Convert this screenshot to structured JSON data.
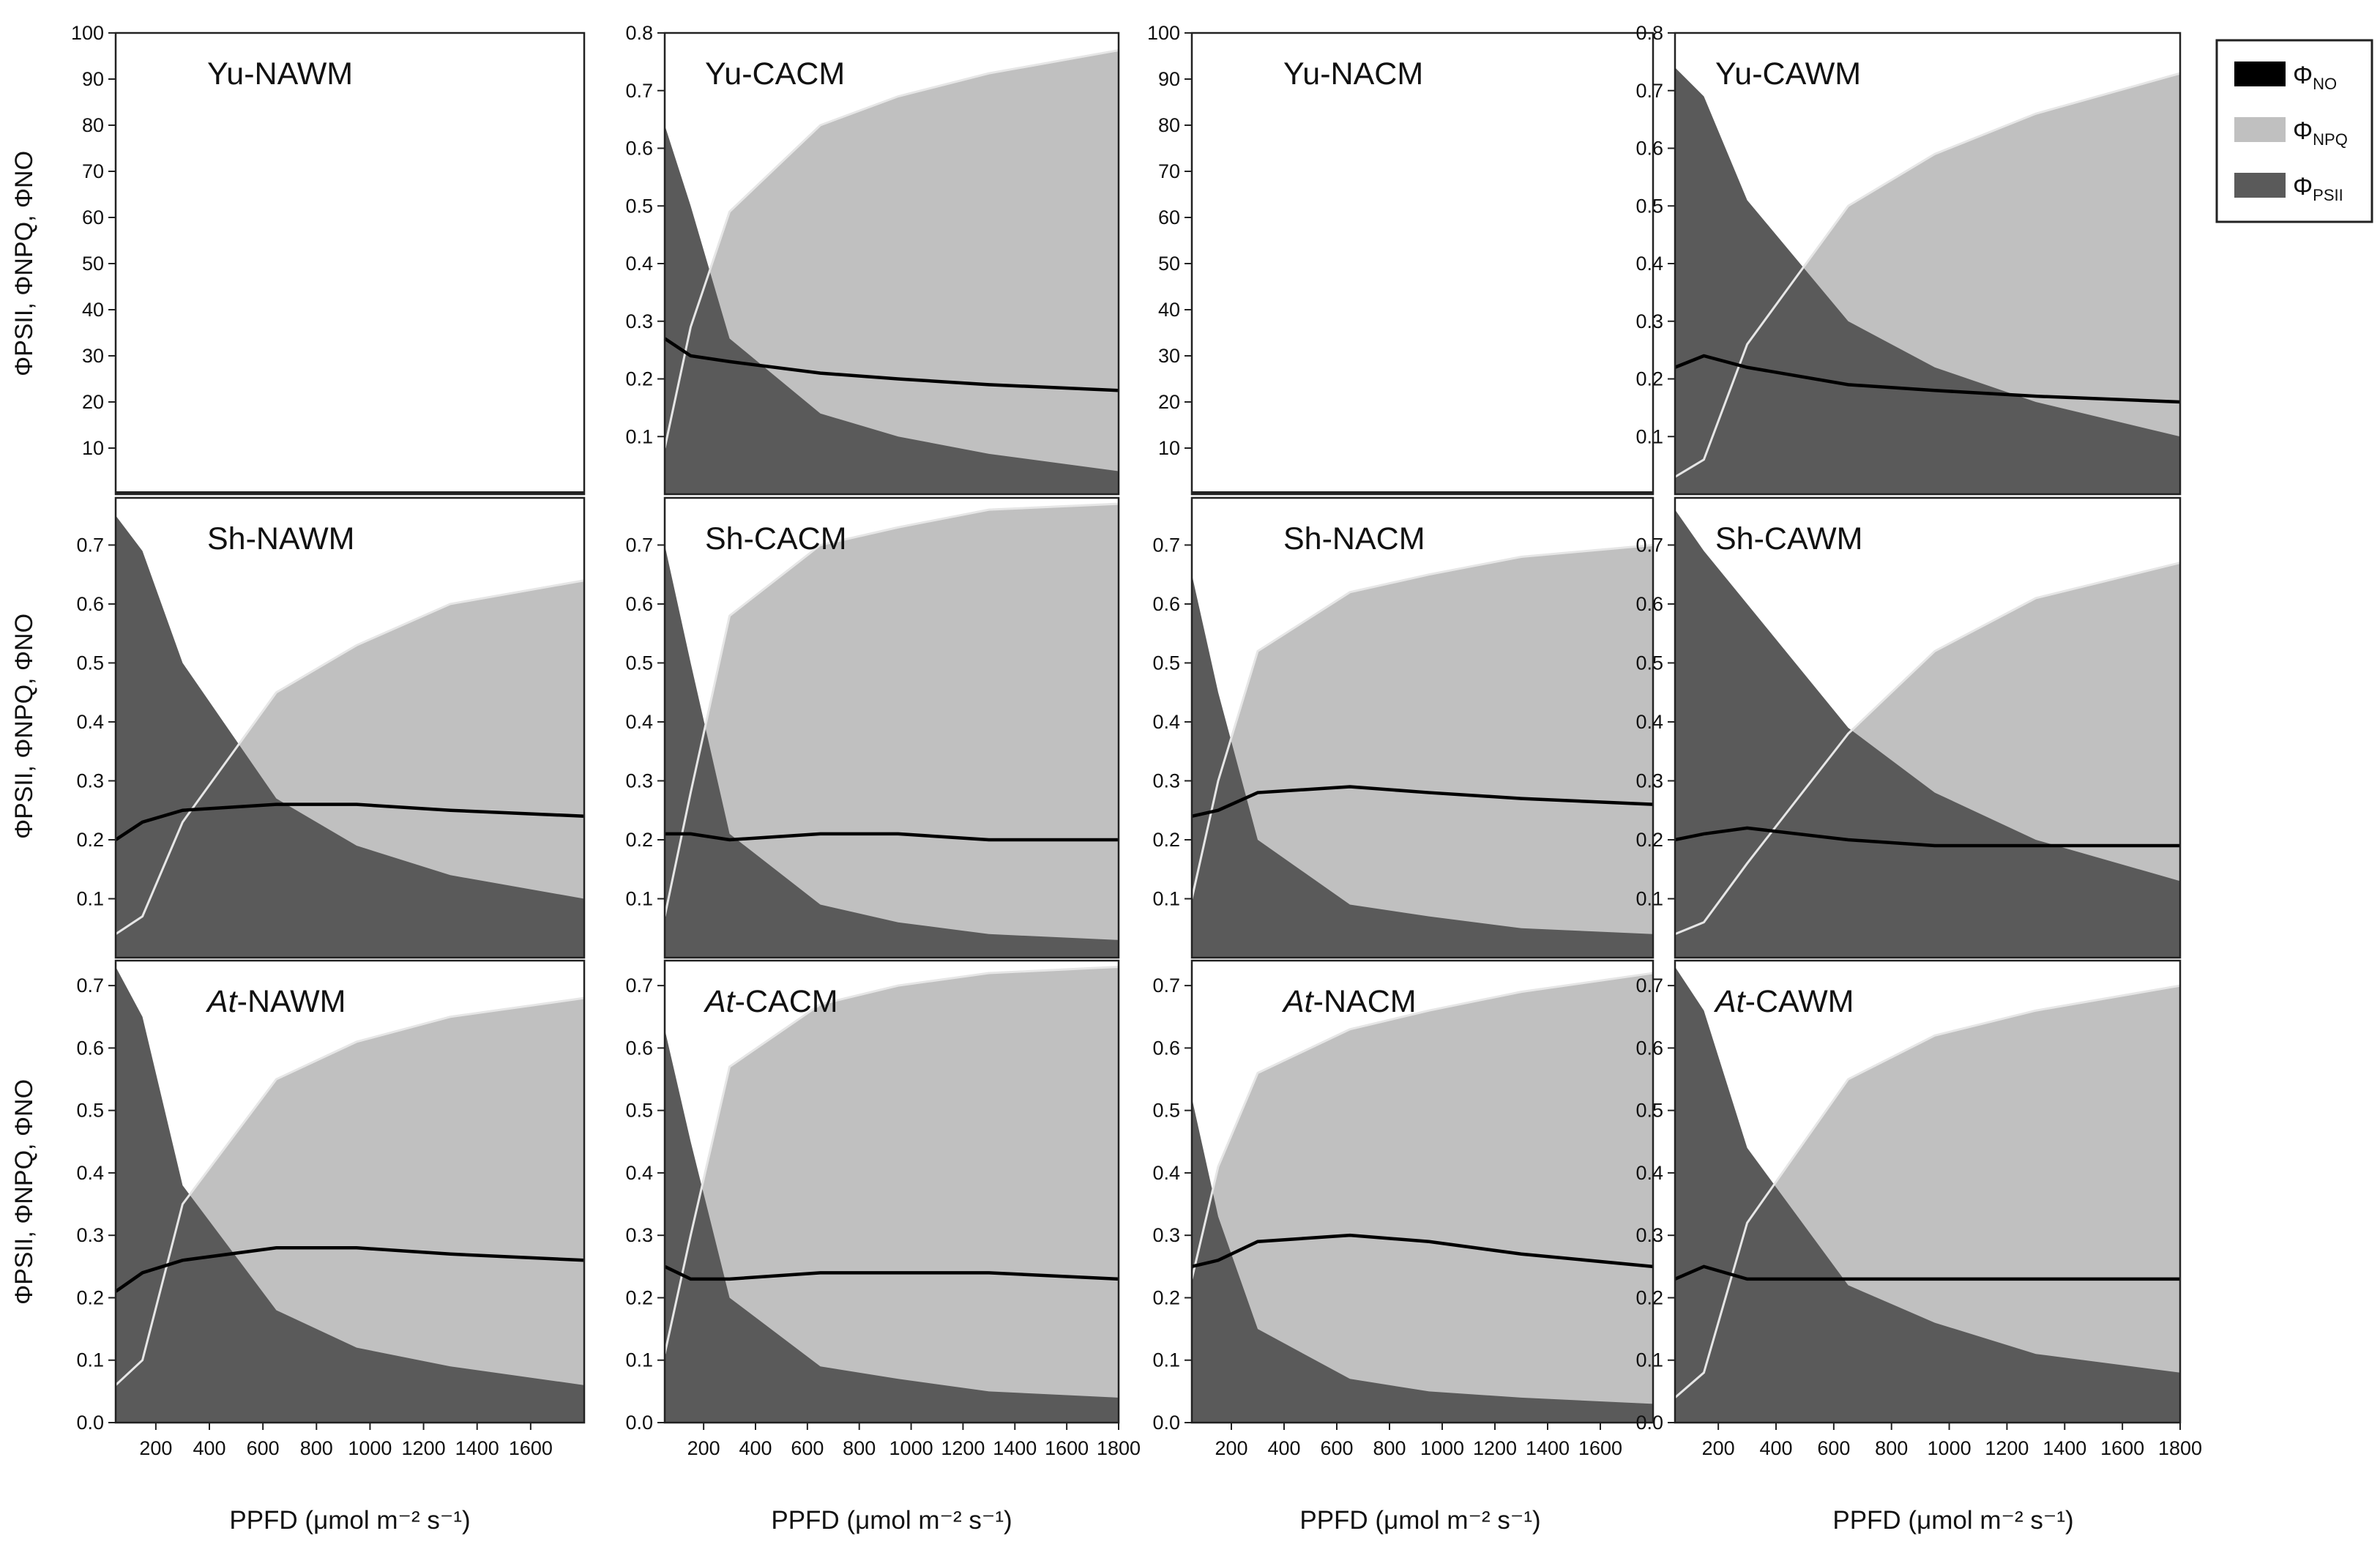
{
  "x_axis_label": "PPFD (μmol m⁻² s⁻¹)",
  "y_axis_label": "ΦPSII, ΦNPQ, ΦNO",
  "legend": [
    {
      "label": "ΦNO",
      "symbol": "Φ",
      "sub": "NO",
      "color": "#000000"
    },
    {
      "label": "ΦNPQ",
      "symbol": "Φ",
      "sub": "NPQ",
      "color": "#c0c0c0"
    },
    {
      "label": "ΦPSII",
      "symbol": "Φ",
      "sub": "PSII",
      "color": "#5a5a5a"
    }
  ],
  "colors": {
    "psii": "#5a5a5a",
    "npq": "#c0c0c0",
    "no": "#000000",
    "white_line": "#e6e6e6"
  },
  "chart_data": [
    {
      "type": "area",
      "title": "Yu-NAWM",
      "title_prefix": "Yu",
      "title_suffix": "-NAWM",
      "italic_prefix": false,
      "ylim": [
        0,
        100
      ],
      "yticks": [
        "10",
        "20",
        "30",
        "40",
        "50",
        "60",
        "70",
        "80",
        "90",
        "100"
      ],
      "xticks": [],
      "x": [],
      "series": []
    },
    {
      "type": "area",
      "title": "Yu-CACM",
      "title_prefix": "Yu",
      "title_suffix": "-CACM",
      "italic_prefix": false,
      "ylim": [
        0,
        0.8
      ],
      "yticks": [
        "0.1",
        "0.2",
        "0.3",
        "0.4",
        "0.5",
        "0.6",
        "0.7",
        "0.8"
      ],
      "xticks": [],
      "x": [
        50,
        150,
        300,
        650,
        950,
        1300,
        1800
      ],
      "series": [
        {
          "name": "PSII",
          "values": [
            0.64,
            0.5,
            0.27,
            0.14,
            0.1,
            0.07,
            0.04
          ]
        },
        {
          "name": "NPQ",
          "values": [
            0.08,
            0.29,
            0.49,
            0.64,
            0.69,
            0.73,
            0.77
          ]
        },
        {
          "name": "NO",
          "values": [
            0.27,
            0.24,
            0.23,
            0.21,
            0.2,
            0.19,
            0.18
          ]
        }
      ]
    },
    {
      "type": "area",
      "title": "Yu-NACM",
      "title_prefix": "Yu",
      "title_suffix": "-NACM",
      "italic_prefix": false,
      "ylim": [
        0,
        100
      ],
      "yticks": [
        "10",
        "20",
        "30",
        "40",
        "50",
        "60",
        "70",
        "80",
        "90",
        "100"
      ],
      "xticks": [],
      "x": [],
      "series": []
    },
    {
      "type": "area",
      "title": "Yu-CAWM",
      "title_prefix": "Yu",
      "title_suffix": "-CAWM",
      "italic_prefix": false,
      "ylim": [
        0,
        0.8
      ],
      "yticks": [
        "0.1",
        "0.2",
        "0.3",
        "0.4",
        "0.5",
        "0.6",
        "0.7",
        "0.8"
      ],
      "xticks": [],
      "x": [
        50,
        150,
        300,
        650,
        950,
        1300,
        1800
      ],
      "series": [
        {
          "name": "PSII",
          "values": [
            0.74,
            0.69,
            0.51,
            0.3,
            0.22,
            0.16,
            0.1
          ]
        },
        {
          "name": "NPQ",
          "values": [
            0.03,
            0.06,
            0.26,
            0.5,
            0.59,
            0.66,
            0.73
          ]
        },
        {
          "name": "NO",
          "values": [
            0.22,
            0.24,
            0.22,
            0.19,
            0.18,
            0.17,
            0.16
          ]
        }
      ]
    },
    {
      "type": "area",
      "title": "Sh-NAWM",
      "title_prefix": "Sh",
      "title_suffix": "-NAWM",
      "italic_prefix": false,
      "ylim": [
        0,
        0.78
      ],
      "yticks": [
        "0.1",
        "0.2",
        "0.3",
        "0.4",
        "0.5",
        "0.6",
        "0.7"
      ],
      "xticks": [],
      "x": [
        50,
        150,
        300,
        650,
        950,
        1300,
        1800
      ],
      "series": [
        {
          "name": "PSII",
          "values": [
            0.75,
            0.69,
            0.5,
            0.27,
            0.19,
            0.14,
            0.1
          ]
        },
        {
          "name": "NPQ",
          "values": [
            0.04,
            0.07,
            0.23,
            0.45,
            0.53,
            0.6,
            0.64
          ]
        },
        {
          "name": "NO",
          "values": [
            0.2,
            0.23,
            0.25,
            0.26,
            0.26,
            0.25,
            0.24
          ]
        }
      ]
    },
    {
      "type": "area",
      "title": "Sh-CACM",
      "title_prefix": "Sh",
      "title_suffix": "-CACM",
      "italic_prefix": false,
      "ylim": [
        0,
        0.78
      ],
      "yticks": [
        "0.1",
        "0.2",
        "0.3",
        "0.4",
        "0.5",
        "0.6",
        "0.7"
      ],
      "xticks": [],
      "x": [
        50,
        150,
        300,
        650,
        950,
        1300,
        1800
      ],
      "series": [
        {
          "name": "PSII",
          "values": [
            0.7,
            0.5,
            0.21,
            0.09,
            0.06,
            0.04,
            0.03
          ]
        },
        {
          "name": "NPQ",
          "values": [
            0.07,
            0.28,
            0.58,
            0.7,
            0.73,
            0.76,
            0.77
          ]
        },
        {
          "name": "NO",
          "values": [
            0.21,
            0.21,
            0.2,
            0.21,
            0.21,
            0.2,
            0.2
          ]
        }
      ]
    },
    {
      "type": "area",
      "title": "Sh-NACM",
      "title_prefix": "Sh",
      "title_suffix": "-NACM",
      "italic_prefix": false,
      "ylim": [
        0,
        0.78
      ],
      "yticks": [
        "0.1",
        "0.2",
        "0.3",
        "0.4",
        "0.5",
        "0.6",
        "0.7"
      ],
      "xticks": [],
      "x": [
        50,
        150,
        300,
        650,
        950,
        1300,
        1800
      ],
      "series": [
        {
          "name": "PSII",
          "values": [
            0.65,
            0.45,
            0.2,
            0.09,
            0.07,
            0.05,
            0.04
          ]
        },
        {
          "name": "NPQ",
          "values": [
            0.1,
            0.3,
            0.52,
            0.62,
            0.65,
            0.68,
            0.7
          ]
        },
        {
          "name": "NO",
          "values": [
            0.24,
            0.25,
            0.28,
            0.29,
            0.28,
            0.27,
            0.26
          ]
        }
      ]
    },
    {
      "type": "area",
      "title": "Sh-CAWM",
      "title_prefix": "Sh",
      "title_suffix": "-CAWM",
      "italic_prefix": false,
      "ylim": [
        0,
        0.78
      ],
      "yticks": [
        "0.1",
        "0.2",
        "0.3",
        "0.4",
        "0.5",
        "0.6",
        "0.7"
      ],
      "xticks": [],
      "x": [
        50,
        150,
        300,
        650,
        950,
        1300,
        1800
      ],
      "series": [
        {
          "name": "PSII",
          "values": [
            0.76,
            0.69,
            0.6,
            0.39,
            0.28,
            0.2,
            0.13
          ]
        },
        {
          "name": "NPQ",
          "values": [
            0.04,
            0.06,
            0.16,
            0.38,
            0.52,
            0.61,
            0.67
          ]
        },
        {
          "name": "NO",
          "values": [
            0.2,
            0.21,
            0.22,
            0.2,
            0.19,
            0.19,
            0.19
          ]
        }
      ]
    },
    {
      "type": "area",
      "title": "At-NAWM",
      "title_prefix": "At",
      "title_suffix": "-NAWM",
      "italic_prefix": true,
      "ylim": [
        0,
        0.74
      ],
      "yticks": [
        "0.0",
        "0.1",
        "0.2",
        "0.3",
        "0.4",
        "0.5",
        "0.6",
        "0.7"
      ],
      "xticks": [
        "200",
        "400",
        "600",
        "800",
        "1000",
        "1200",
        "1400",
        "1600"
      ],
      "x": [
        50,
        150,
        300,
        650,
        950,
        1300,
        1800
      ],
      "series": [
        {
          "name": "PSII",
          "values": [
            0.73,
            0.65,
            0.38,
            0.18,
            0.12,
            0.09,
            0.06
          ]
        },
        {
          "name": "NPQ",
          "values": [
            0.06,
            0.1,
            0.35,
            0.55,
            0.61,
            0.65,
            0.68
          ]
        },
        {
          "name": "NO",
          "values": [
            0.21,
            0.24,
            0.26,
            0.28,
            0.28,
            0.27,
            0.26
          ]
        }
      ]
    },
    {
      "type": "area",
      "title": "At-CACM",
      "title_prefix": "At",
      "title_suffix": "-CACM",
      "italic_prefix": true,
      "ylim": [
        0,
        0.74
      ],
      "yticks": [
        "0.0",
        "0.1",
        "0.2",
        "0.3",
        "0.4",
        "0.5",
        "0.6",
        "0.7"
      ],
      "xticks": [
        "200",
        "400",
        "600",
        "800",
        "1000",
        "1200",
        "1400",
        "1600",
        "1800"
      ],
      "x": [
        50,
        150,
        300,
        650,
        950,
        1300,
        1800
      ],
      "series": [
        {
          "name": "PSII",
          "values": [
            0.63,
            0.45,
            0.2,
            0.09,
            0.07,
            0.05,
            0.04
          ]
        },
        {
          "name": "NPQ",
          "values": [
            0.11,
            0.3,
            0.57,
            0.67,
            0.7,
            0.72,
            0.73
          ]
        },
        {
          "name": "NO",
          "values": [
            0.25,
            0.23,
            0.23,
            0.24,
            0.24,
            0.24,
            0.23
          ]
        }
      ]
    },
    {
      "type": "area",
      "title": "At-NACM",
      "title_prefix": "At",
      "title_suffix": "-NACM",
      "italic_prefix": true,
      "ylim": [
        0,
        0.74
      ],
      "yticks": [
        "0.0",
        "0.1",
        "0.2",
        "0.3",
        "0.4",
        "0.5",
        "0.6",
        "0.7"
      ],
      "xticks": [
        "200",
        "400",
        "600",
        "800",
        "1000",
        "1200",
        "1400",
        "1600"
      ],
      "x": [
        50,
        150,
        300,
        650,
        950,
        1300,
        1800
      ],
      "series": [
        {
          "name": "PSII",
          "values": [
            0.52,
            0.33,
            0.15,
            0.07,
            0.05,
            0.04,
            0.03
          ]
        },
        {
          "name": "NPQ",
          "values": [
            0.23,
            0.41,
            0.56,
            0.63,
            0.66,
            0.69,
            0.72
          ]
        },
        {
          "name": "NO",
          "values": [
            0.25,
            0.26,
            0.29,
            0.3,
            0.29,
            0.27,
            0.25
          ]
        }
      ]
    },
    {
      "type": "area",
      "title": "At-CAWM",
      "title_prefix": "At",
      "title_suffix": "-CAWM",
      "italic_prefix": true,
      "ylim": [
        0,
        0.74
      ],
      "yticks": [
        "0.0",
        "0.1",
        "0.2",
        "0.3",
        "0.4",
        "0.5",
        "0.6",
        "0.7"
      ],
      "xticks": [
        "200",
        "400",
        "600",
        "800",
        "1000",
        "1200",
        "1400",
        "1600",
        "1800"
      ],
      "x": [
        50,
        150,
        300,
        650,
        950,
        1300,
        1800
      ],
      "series": [
        {
          "name": "PSII",
          "values": [
            0.73,
            0.66,
            0.44,
            0.22,
            0.16,
            0.11,
            0.08
          ]
        },
        {
          "name": "NPQ",
          "values": [
            0.04,
            0.08,
            0.32,
            0.55,
            0.62,
            0.66,
            0.7
          ]
        },
        {
          "name": "NO",
          "values": [
            0.23,
            0.25,
            0.23,
            0.23,
            0.23,
            0.23,
            0.23
          ]
        }
      ]
    }
  ]
}
